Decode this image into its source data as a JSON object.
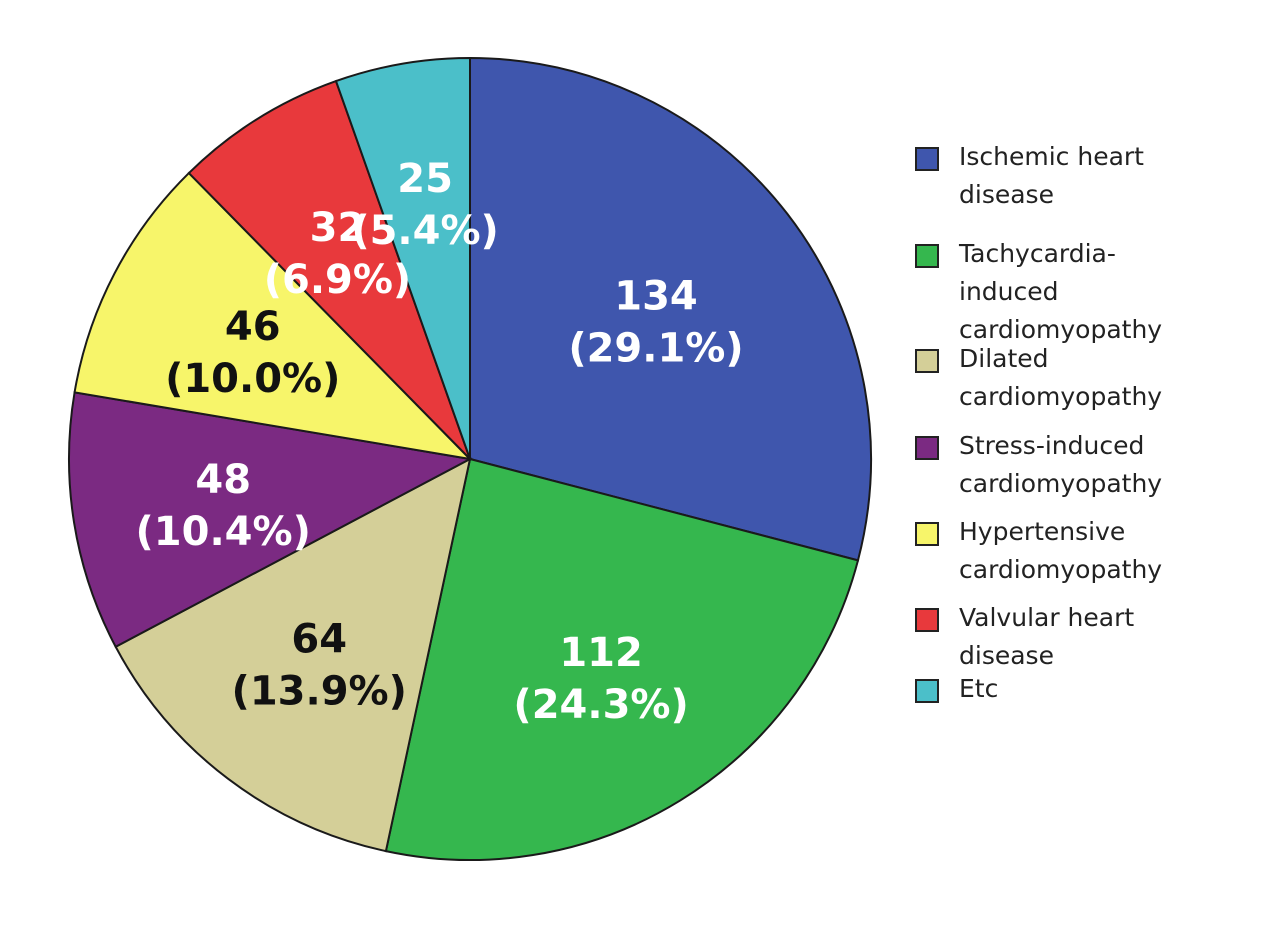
{
  "chart_data": {
    "type": "pie",
    "title": "",
    "start_angle_deg": 0,
    "direction": "clockwise",
    "total": 461,
    "slices": [
      {
        "name": "Ischemic heart disease",
        "legend_label": "Ischemic heart\ndisease",
        "value": 134,
        "value_label": "134",
        "pct_label": "(29.1%)",
        "color": "#3f56ad",
        "label_color": "#ffffff"
      },
      {
        "name": "Tachycardia-induced cardiomyopathy",
        "legend_label": "Tachycardia-\ninduced\ncardiomyopathy",
        "value": 112,
        "value_label": "112",
        "pct_label": "(24.3%)",
        "color": "#35b74e",
        "label_color": "#ffffff"
      },
      {
        "name": "Dilated cardiomyopathy",
        "legend_label": "Dilated\ncardiomyopathy",
        "value": 64,
        "value_label": "64",
        "pct_label": "(13.9%)",
        "color": "#d4cf98",
        "label_color": "#111111"
      },
      {
        "name": "Stress-induced cardiomyopathy",
        "legend_label": "Stress-induced\ncardiomyopathy",
        "value": 48,
        "value_label": "48",
        "pct_label": "(10.4%)",
        "color": "#7b2a82",
        "label_color": "#ffffff"
      },
      {
        "name": "Hypertensive cardiomyopathy",
        "legend_label": "Hypertensive\ncardiomyopathy",
        "value": 46,
        "value_label": "46",
        "pct_label": "(10.0%)",
        "color": "#f7f56a",
        "label_color": "#111111"
      },
      {
        "name": "Valvular heart disease",
        "legend_label": "Valvular heart\ndisease",
        "value": 32,
        "value_label": "32",
        "pct_label": "(6.9%)",
        "color": "#e8393c",
        "label_color": "#ffffff"
      },
      {
        "name": "Etc",
        "legend_label": "Etc",
        "value": 25,
        "value_label": "25",
        "pct_label": "(5.4%)",
        "color": "#4bbfc9",
        "label_color": "#ffffff"
      }
    ],
    "legend_position": "right"
  }
}
